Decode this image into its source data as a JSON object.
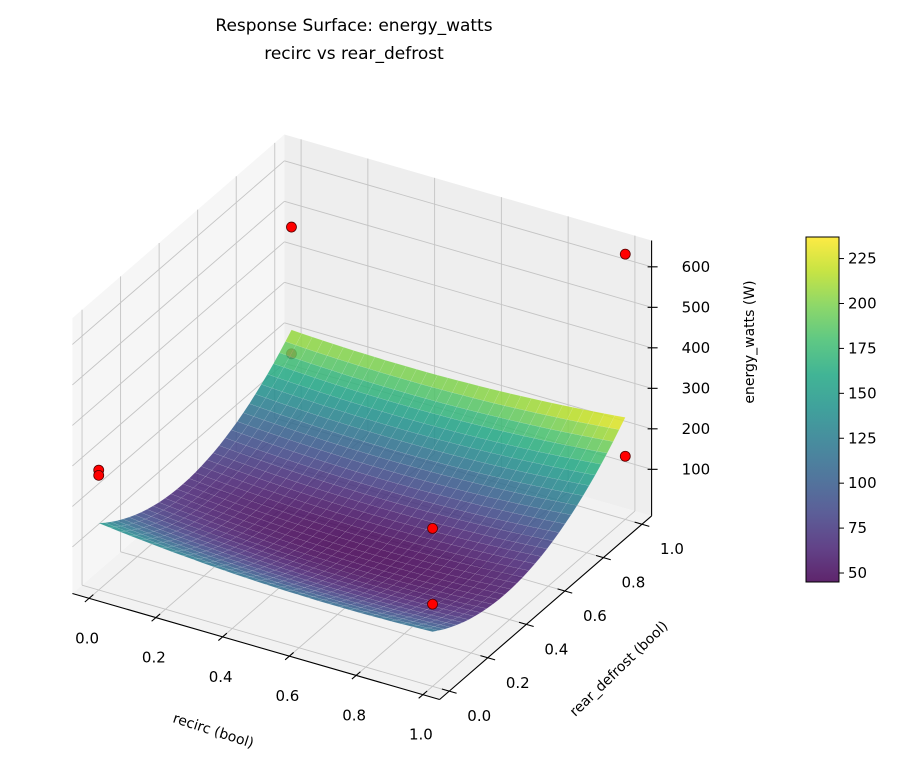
{
  "chart_data": {
    "type": "surface",
    "title": [
      "Response Surface: energy_watts",
      "recirc vs rear_defrost"
    ],
    "xlabel": "recirc (bool)",
    "ylabel": "rear_defrost (bool)",
    "zlabel": "energy_watts (W)",
    "xlim": [
      -0.05,
      1.05
    ],
    "ylim": [
      -0.05,
      1.05
    ],
    "zlim": [
      -15,
      665
    ],
    "xticks": [
      0,
      0.2,
      0.4,
      0.6,
      0.8,
      1.0
    ],
    "xtick_labels": [
      "0.0",
      "0.2",
      "0.4",
      "0.6",
      "0.8",
      "1.0"
    ],
    "yticks": [
      0,
      0.2,
      0.4,
      0.6,
      0.8,
      1.0
    ],
    "ytick_labels": [
      "0.0",
      "0.2",
      "0.4",
      "0.6",
      "0.8",
      "1.0"
    ],
    "zticks": [
      100,
      200,
      300,
      400,
      500,
      600
    ],
    "ztick_labels": [
      "100",
      "200",
      "300",
      "400",
      "500",
      "600"
    ],
    "grid": true,
    "surface": {
      "x_range": [
        0,
        1
      ],
      "y_range": [
        0,
        1
      ],
      "model": "quadratic",
      "coefficients": {
        "const": 150,
        "x": -99,
        "y": -390,
        "x2": 69,
        "y2": 455,
        "xy": 52
      },
      "colormap": "viridis"
    },
    "scatter": {
      "color": "#ff0000",
      "points": [
        {
          "x": 0,
          "y": 0,
          "z": 281
        },
        {
          "x": 0,
          "y": 0,
          "z": 268
        },
        {
          "x": 0,
          "y": 1,
          "z": 469
        },
        {
          "x": 0,
          "y": 1,
          "z": 156
        },
        {
          "x": 1,
          "y": 1,
          "z": 640
        },
        {
          "x": 1,
          "y": 1,
          "z": 141
        },
        {
          "x": 1,
          "y": 0,
          "z": 375
        },
        {
          "x": 1,
          "y": 0,
          "z": 188
        }
      ]
    },
    "colorbar": {
      "range": [
        45,
        237
      ],
      "ticks": [
        50,
        75,
        100,
        125,
        150,
        175,
        200,
        225
      ],
      "tick_labels": [
        "50",
        "75",
        "100",
        "125",
        "150",
        "175",
        "200",
        "225"
      ]
    },
    "view": {
      "elevation": 30,
      "azimuth": -60
    }
  }
}
